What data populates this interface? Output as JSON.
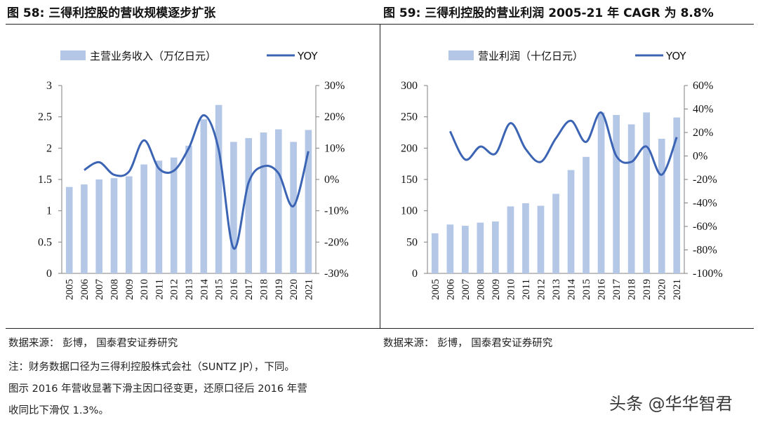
{
  "fig58": {
    "title": "图 58:  三得利控股的营收规模逐步扩张",
    "source": "数据来源：  彭博，  国泰君安证券研究"
  },
  "fig59": {
    "title": "图 59:  三得利控股的营业利润 2005-21 年 CAGR 为 8.8%",
    "source": "数据来源：  彭博，  国泰君安证券研究"
  },
  "notes": {
    "line1": "注：财务数据口径为三得利控股株式会社（SUNTZ JP），下同。",
    "line2": "图示 2016 年营收显著下滑主因口径变更，还原口径后 2016 年营",
    "line3": "收同比下滑仅 1.3%。"
  },
  "watermark": "头条 @华华智君",
  "colors": {
    "bar": "#b4c7e7",
    "line": "#3c64b4",
    "axis": "#7f7f7f"
  },
  "chart_data": [
    {
      "type": "bar",
      "title": "图 58:  三得利控股的营收规模逐步扩张",
      "categories": [
        "2005",
        "2006",
        "2007",
        "2008",
        "2009",
        "2010",
        "2011",
        "2012",
        "2013",
        "2014",
        "2015",
        "2016",
        "2017",
        "2018",
        "2019",
        "2020",
        "2021"
      ],
      "series": [
        {
          "name": "主营业务收入（万亿日元）",
          "kind": "bar",
          "axis": "left",
          "values": [
            1.38,
            1.42,
            1.5,
            1.52,
            1.55,
            1.74,
            1.8,
            1.85,
            2.04,
            2.46,
            2.69,
            2.1,
            2.16,
            2.25,
            2.3,
            2.1,
            2.29
          ]
        },
        {
          "name": "YOY",
          "kind": "line",
          "axis": "right",
          "values": [
            null,
            3.0,
            5.5,
            1.5,
            2.5,
            12.5,
            3.5,
            2.8,
            10.0,
            20.5,
            9.5,
            -22.0,
            -1.0,
            4.2,
            2.0,
            -8.5,
            9.0
          ]
        }
      ],
      "ylim_left": [
        0,
        3
      ],
      "yticks_left": [
        "0",
        "0.5",
        "1",
        "1.5",
        "2",
        "2.5",
        "3"
      ],
      "ylim_right": [
        -30,
        30
      ],
      "yticks_right": [
        "-30%",
        "-20%",
        "-10%",
        "0%",
        "10%",
        "20%",
        "30%"
      ]
    },
    {
      "type": "bar",
      "title": "图 59:  三得利控股的营业利润 2005-21 年 CAGR 为 8.8%",
      "categories": [
        "2005",
        "2006",
        "2007",
        "2008",
        "2009",
        "2010",
        "2011",
        "2012",
        "2013",
        "2014",
        "2015",
        "2016",
        "2017",
        "2018",
        "2019",
        "2020",
        "2021"
      ],
      "series": [
        {
          "name": "营业利润（十亿日元）",
          "kind": "bar",
          "axis": "left",
          "values": [
            64,
            78,
            76,
            81,
            83,
            107,
            112,
            108,
            127,
            165,
            186,
            257,
            253,
            238,
            257,
            215,
            249
          ]
        },
        {
          "name": "YOY",
          "kind": "line",
          "axis": "right",
          "values": [
            null,
            21,
            -3,
            8,
            2,
            28,
            6,
            -5,
            15,
            30,
            12,
            37,
            0,
            -5,
            8,
            -16,
            16
          ]
        }
      ],
      "ylim_left": [
        0,
        300
      ],
      "yticks_left": [
        "0",
        "50",
        "100",
        "150",
        "200",
        "250",
        "300"
      ],
      "ylim_right": [
        -100,
        60
      ],
      "yticks_right": [
        "-100%",
        "-80%",
        "-60%",
        "-40%",
        "-20%",
        "0%",
        "20%",
        "40%",
        "60%"
      ]
    }
  ]
}
